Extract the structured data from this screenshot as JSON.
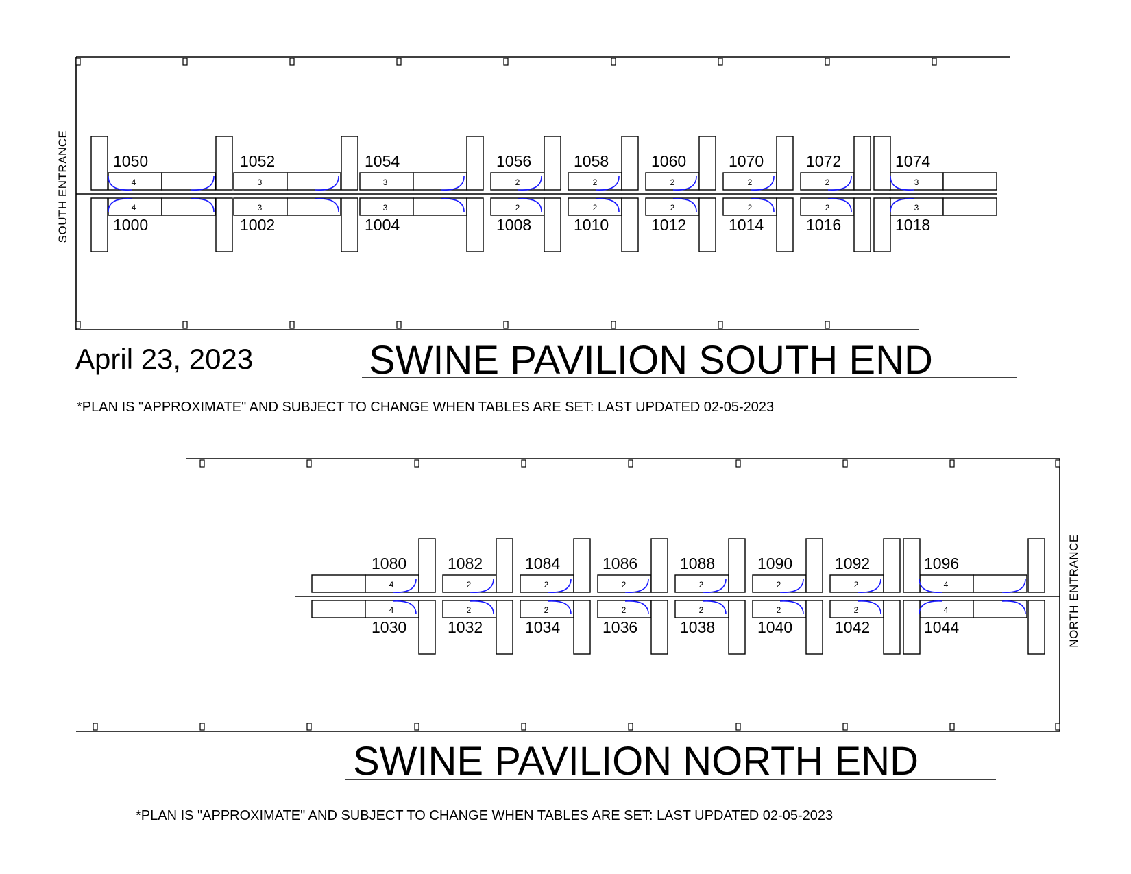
{
  "date": "April 23, 2023",
  "south": {
    "title": "SWINE PAVILION SOUTH END",
    "note": "*PLAN IS \"APPROXIMATE\" AND SUBJECT TO CHANGE WHEN TABLES ARE SET: LAST UPDATED 02-05-2023",
    "entrance": "SOUTH ENTRANCE",
    "top_row": [
      {
        "booth": "1050",
        "tables": "4"
      },
      {
        "booth": "1052",
        "tables": "3"
      },
      {
        "booth": "1054",
        "tables": "3"
      },
      {
        "booth": "1056",
        "tables": "2"
      },
      {
        "booth": "1058",
        "tables": "2"
      },
      {
        "booth": "1060",
        "tables": "2"
      },
      {
        "booth": "1070",
        "tables": "2"
      },
      {
        "booth": "1072",
        "tables": "2"
      },
      {
        "booth": "1074",
        "tables": "3"
      }
    ],
    "bottom_row": [
      {
        "booth": "1000",
        "tables": "4"
      },
      {
        "booth": "1002",
        "tables": "3"
      },
      {
        "booth": "1004",
        "tables": "3"
      },
      {
        "booth": "1008",
        "tables": "2"
      },
      {
        "booth": "1010",
        "tables": "2"
      },
      {
        "booth": "1012",
        "tables": "2"
      },
      {
        "booth": "1014",
        "tables": "2"
      },
      {
        "booth": "1016",
        "tables": "2"
      },
      {
        "booth": "1018",
        "tables": "3"
      }
    ]
  },
  "north": {
    "title": "SWINE PAVILION NORTH END",
    "note": "*PLAN IS \"APPROXIMATE\" AND SUBJECT TO CHANGE WHEN TABLES ARE SET: LAST UPDATED 02-05-2023",
    "entrance": "NORTH ENTRANCE",
    "top_row": [
      {
        "booth": "1080",
        "tables": "4"
      },
      {
        "booth": "1082",
        "tables": "2"
      },
      {
        "booth": "1084",
        "tables": "2"
      },
      {
        "booth": "1086",
        "tables": "2"
      },
      {
        "booth": "1088",
        "tables": "2"
      },
      {
        "booth": "1090",
        "tables": "2"
      },
      {
        "booth": "1092",
        "tables": "2"
      },
      {
        "booth": "1096",
        "tables": "4"
      }
    ],
    "bottom_row": [
      {
        "booth": "1030",
        "tables": "4"
      },
      {
        "booth": "1032",
        "tables": "2"
      },
      {
        "booth": "1034",
        "tables": "2"
      },
      {
        "booth": "1036",
        "tables": "2"
      },
      {
        "booth": "1038",
        "tables": "2"
      },
      {
        "booth": "1040",
        "tables": "2"
      },
      {
        "booth": "1042",
        "tables": "2"
      },
      {
        "booth": "1044",
        "tables": "4"
      }
    ]
  }
}
